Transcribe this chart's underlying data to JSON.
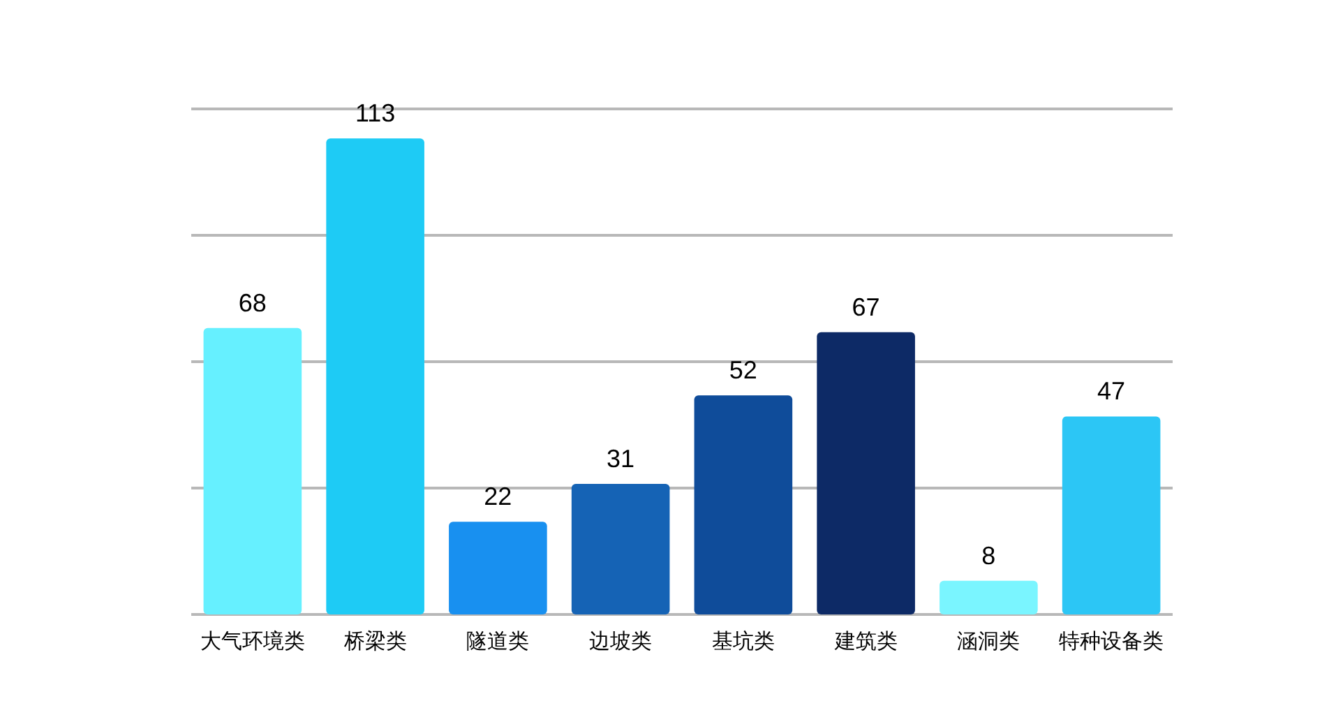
{
  "chart_data": {
    "type": "bar",
    "categories": [
      "大气环境类",
      "桥梁类",
      "隧道类",
      "边坡类",
      "基坑类",
      "建筑类",
      "涵洞类",
      "特种设备类"
    ],
    "values": [
      68,
      113,
      22,
      31,
      52,
      67,
      8,
      47
    ],
    "colors": [
      "#66f0ff",
      "#1ecbf5",
      "#1890f0",
      "#1563b5",
      "#0f4c9a",
      "#0d2a66",
      "#7af5ff",
      "#2cc6f5"
    ],
    "ylim": [
      0,
      120
    ],
    "yticks": [
      {
        "value": 0,
        "label": null
      },
      {
        "value": 30,
        "label": null
      },
      {
        "value": 60,
        "label": null
      },
      {
        "value": 90,
        "label": null
      },
      {
        "value": 120,
        "label": null
      }
    ],
    "tick_labels": "x",
    "grid": "y",
    "data_labels": true
  }
}
